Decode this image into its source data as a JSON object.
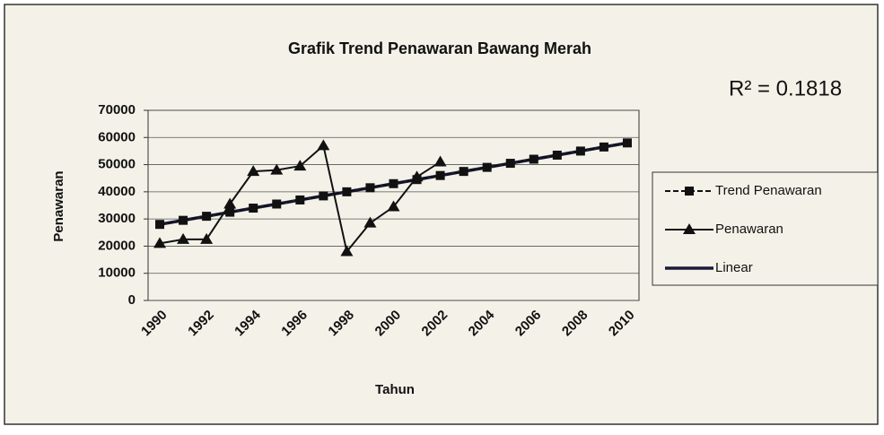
{
  "chart_data": {
    "type": "line",
    "title": "Grafik Trend Penawaran Bawang Merah",
    "annotation": "R² = 0.1818",
    "xlabel": "Tahun",
    "ylabel": "Penawaran",
    "categories": [
      "1990",
      null,
      "1992",
      null,
      "1994",
      null,
      "1996",
      null,
      "1998",
      null,
      "2000",
      null,
      "2002",
      null,
      "2004",
      null,
      "2006",
      null,
      "2008",
      null,
      "2010"
    ],
    "series": [
      {
        "name": "Trend Penawaran",
        "color": "#111111",
        "marker": "square",
        "dash": true,
        "values": [
          28000,
          29500,
          31000,
          32500,
          34000,
          35500,
          37000,
          38500,
          40000,
          41500,
          43000,
          44500,
          46000,
          47500,
          49000,
          50500,
          52000,
          53500,
          55000,
          56500,
          58000
        ]
      },
      {
        "name": "Penawaran",
        "color": "#111111",
        "marker": "triangle",
        "values": [
          21000,
          22500,
          22500,
          35500,
          47500,
          48000,
          49500,
          57000,
          18000,
          28500,
          34500,
          45500,
          51000,
          null,
          null,
          null,
          null,
          null,
          null,
          null,
          null
        ]
      },
      {
        "name": "Linear",
        "color": "#1a1a3a",
        "marker": "none",
        "values": [
          28000,
          29500,
          31000,
          32500,
          34000,
          35500,
          37000,
          38500,
          40000,
          41500,
          43000,
          44500,
          46000,
          47500,
          49000,
          50500,
          52000,
          53500,
          55000,
          56500,
          58000
        ]
      }
    ],
    "ylim": [
      0,
      70000
    ],
    "yticks": [
      0,
      10000,
      20000,
      30000,
      40000,
      50000,
      60000,
      70000
    ],
    "grid": true,
    "legend": "right"
  }
}
